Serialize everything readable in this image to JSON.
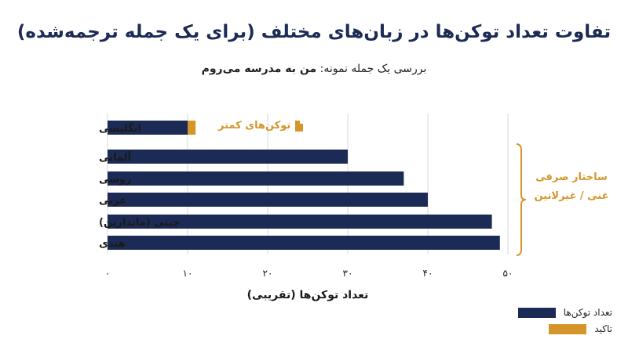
{
  "chart_data": {
    "type": "bar",
    "orientation": "horizontal",
    "title": "تفاوت تعداد توکن‌ها در زبان‌های مختلف (برای یک جمله ترجمه‌شده)",
    "subtitle_prefix": "بررسی یک جمله نمونه:",
    "subtitle_sentence": "من به مدرسه می‌روم",
    "xlabel": "تعداد توکن‌ها (تقریبی)",
    "xlim": [
      0,
      50
    ],
    "xticks": [
      "۰",
      "۱۰",
      "۲۰",
      "۳۰",
      "۴۰",
      "۵۰"
    ],
    "categories": [
      "انگلیسی",
      "آلمانی",
      "روسی",
      "عربی",
      "چینی (ماندارین)",
      "هندی"
    ],
    "series": [
      {
        "name": "تعداد توکن‌ها",
        "color": "#1c2b55",
        "values": [
          10,
          30,
          37,
          40,
          48,
          49
        ]
      },
      {
        "name": "تاکید",
        "color": "#d4962b",
        "values": [
          1,
          0,
          0,
          0,
          0,
          0
        ]
      }
    ],
    "annotations": {
      "english_note": "توکن‌های کمتر",
      "bracket_line1": "ساختار صرفی",
      "bracket_line2": "غنی / غیرلاتین"
    },
    "legend_position": "bottom-right"
  }
}
